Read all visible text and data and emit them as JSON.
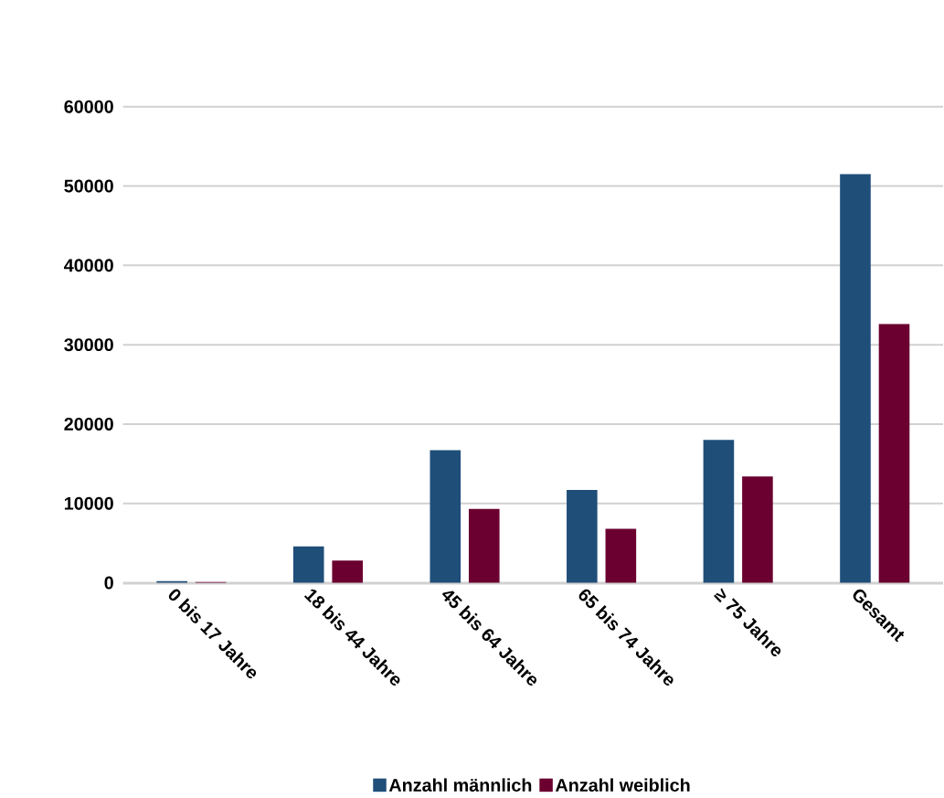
{
  "chart_data": {
    "type": "bar",
    "categories": [
      "0 bis 17 Jahre",
      "18 bis 44 Jahre",
      "45 bis 64 Jahre",
      "65 bis 74 Jahre",
      "≥ 75 Jahre",
      "Gesamt"
    ],
    "series": [
      {
        "name": "Anzahl männlich",
        "color": "#1f4e79",
        "values": [
          200,
          4600,
          16700,
          11700,
          18000,
          51500
        ]
      },
      {
        "name": "Anzahl weiblich",
        "color": "#6b0030",
        "values": [
          100,
          2800,
          9300,
          6800,
          13400,
          32600
        ]
      }
    ],
    "ylim": [
      0,
      60000
    ],
    "yticks": [
      0,
      10000,
      20000,
      30000,
      40000,
      50000,
      60000
    ],
    "grid": "y",
    "legend": "bottom"
  }
}
